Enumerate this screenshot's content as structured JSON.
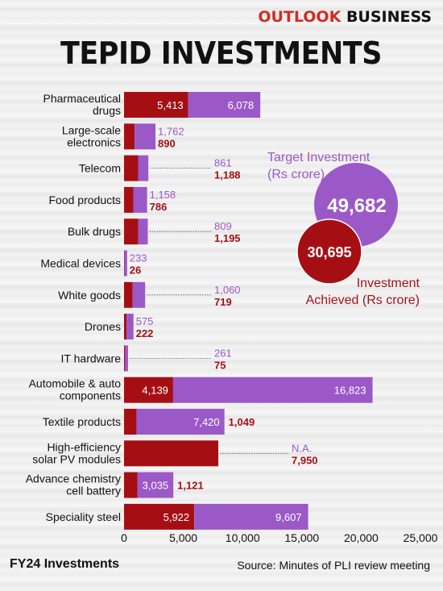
{
  "header": {
    "brand_part1": "OUTLOOK",
    "brand_part2": "BUSINESS",
    "title": "TEPID INVESTMENTS"
  },
  "footer": {
    "left": "FY24 Investments",
    "right": "Source: Minutes of PLI review meeting"
  },
  "colors": {
    "achieved": "#a50f14",
    "target": "#9b59c8"
  },
  "chart_data": {
    "type": "bar",
    "orientation": "horizontal",
    "stacked": true,
    "x_ticks": [
      "0",
      "5,000",
      "10,000",
      "15,000",
      "20,000",
      "25,000"
    ],
    "xlim": [
      0,
      25000
    ],
    "categories": [
      "Pharmaceutical drugs",
      "Large-scale electronics",
      "Telecom",
      "Food products",
      "Bulk drugs",
      "Medical devices",
      "White goods",
      "Drones",
      "IT hardware",
      "Automobile & auto components",
      "Textile products",
      "High-efficiency solar PV modules",
      "Advance chemistry cell battery",
      "Speciality steel"
    ],
    "category_lines": [
      [
        "Pharmaceutical",
        "drugs"
      ],
      [
        "Large-scale",
        "electronics"
      ],
      [
        "Telecom"
      ],
      [
        "Food products"
      ],
      [
        "Bulk drugs"
      ],
      [
        "Medical devices"
      ],
      [
        "White goods"
      ],
      [
        "Drones"
      ],
      [
        "IT hardware"
      ],
      [
        "Automobile & auto",
        "components"
      ],
      [
        "Textile products"
      ],
      [
        "High-efficiency",
        "solar PV modules"
      ],
      [
        "Advance chemistry",
        "cell battery"
      ],
      [
        "Speciality steel"
      ]
    ],
    "series": [
      {
        "name": "Investment Achieved (Rs crore)",
        "values": [
          5413,
          890,
          1188,
          786,
          1195,
          26,
          719,
          222,
          75,
          4139,
          1049,
          7950,
          1121,
          5922
        ],
        "labels": [
          "5,413",
          "890",
          "1,188",
          "786",
          "1,195",
          "26",
          "719",
          "222",
          "75",
          "4,139",
          "1,049",
          "7,950",
          "1,121",
          "5,922"
        ]
      },
      {
        "name": "Target Investment (Rs crore)",
        "values": [
          6078,
          1762,
          861,
          1158,
          809,
          233,
          1060,
          575,
          261,
          16823,
          7420,
          null,
          3035,
          9607
        ],
        "labels": [
          "6,078",
          "1,762",
          "861",
          "1,158",
          "809",
          "233",
          "1,060",
          "575",
          "261",
          "16,823",
          "7,420",
          "N.A.",
          "3,035",
          "9,607"
        ]
      }
    ],
    "label_style": [
      "inside",
      "stack",
      "leader",
      "stack",
      "leader",
      "stack",
      "leader",
      "stack",
      "leader",
      "inside",
      "inside-right",
      "leader",
      "inside-right",
      "inside"
    ],
    "totals": {
      "target_label_1": "Target Investment",
      "target_label_2": "(Rs crore)",
      "target_value": "49,682",
      "achieved_label_1": "Investment",
      "achieved_label_2": "Achieved (Rs crore)",
      "achieved_value": "30,695"
    }
  }
}
